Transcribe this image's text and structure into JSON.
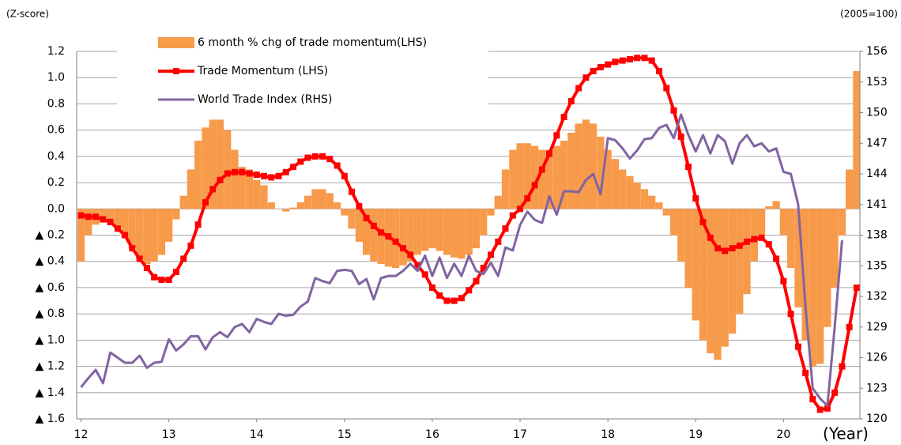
{
  "chart_data": {
    "type": "combo",
    "y_label": "(Z-score)",
    "y2_label": "(2005=100)",
    "x_label": "(Year)",
    "legend": "upper left",
    "grid": true,
    "xlim": [
      11.95,
      20.87
    ],
    "ylim": [
      -1.6,
      1.2
    ],
    "y2lim": [
      120,
      156
    ],
    "xticks": [
      12,
      13,
      14,
      15,
      16,
      17,
      18,
      19,
      20
    ],
    "yticks": [
      {
        "value": -1.6,
        "label": "▲ 1.6"
      },
      {
        "value": -1.4,
        "label": "▲ 1.4"
      },
      {
        "value": -1.2,
        "label": "▲ 1.2"
      },
      {
        "value": -1.0,
        "label": "▲ 1.0"
      },
      {
        "value": -0.8,
        "label": "▲ 0.8"
      },
      {
        "value": -0.6,
        "label": "▲ 0.6"
      },
      {
        "value": -0.4,
        "label": "▲ 0.4"
      },
      {
        "value": -0.2,
        "label": "▲ 0.2"
      },
      {
        "value": 0,
        "label": "0.0"
      },
      0.2,
      0.4,
      0.6,
      0.8,
      {
        "value": 1.0,
        "label": "1.0"
      },
      1.2
    ],
    "y2ticks": [
      120,
      123,
      126,
      129,
      132,
      135,
      138,
      141,
      144,
      147,
      150,
      153,
      156
    ],
    "x": [
      12,
      12.083,
      12.167,
      12.25,
      12.333,
      12.417,
      12.5,
      12.583,
      12.667,
      12.75,
      12.833,
      12.917,
      13,
      13.083,
      13.167,
      13.25,
      13.333,
      13.417,
      13.5,
      13.583,
      13.667,
      13.75,
      13.833,
      13.917,
      14,
      14.083,
      14.167,
      14.25,
      14.333,
      14.417,
      14.5,
      14.583,
      14.667,
      14.75,
      14.833,
      14.917,
      15,
      15.083,
      15.167,
      15.25,
      15.333,
      15.417,
      15.5,
      15.583,
      15.667,
      15.75,
      15.833,
      15.917,
      16,
      16.083,
      16.167,
      16.25,
      16.333,
      16.417,
      16.5,
      16.583,
      16.667,
      16.75,
      16.833,
      16.917,
      17,
      17.083,
      17.167,
      17.25,
      17.333,
      17.417,
      17.5,
      17.583,
      17.667,
      17.75,
      17.833,
      17.917,
      18,
      18.083,
      18.167,
      18.25,
      18.333,
      18.417,
      18.5,
      18.583,
      18.667,
      18.75,
      18.833,
      18.917,
      19,
      19.083,
      19.167,
      19.25,
      19.333,
      19.417,
      19.5,
      19.583,
      19.667,
      19.75,
      19.833,
      19.917,
      20,
      20.083,
      20.167,
      20.25,
      20.333,
      20.417,
      20.5,
      20.583,
      20.667,
      20.75,
      20.833
    ],
    "series": [
      {
        "name": "6 month % chg of trade momentum(LHS)",
        "kind": "bar",
        "color": "#f79a4a",
        "values": [
          -0.4,
          -0.2,
          -0.12,
          -0.08,
          -0.1,
          -0.15,
          -0.22,
          -0.3,
          -0.38,
          -0.42,
          -0.4,
          -0.35,
          -0.25,
          -0.08,
          0.1,
          0.3,
          0.52,
          0.62,
          0.68,
          0.68,
          0.6,
          0.45,
          0.32,
          0.3,
          0.22,
          0.18,
          0.05,
          0.0,
          -0.02,
          0.01,
          0.05,
          0.1,
          0.15,
          0.15,
          0.12,
          0.05,
          -0.05,
          -0.15,
          -0.25,
          -0.35,
          -0.4,
          -0.42,
          -0.44,
          -0.45,
          -0.43,
          -0.4,
          -0.35,
          -0.32,
          -0.3,
          -0.32,
          -0.35,
          -0.37,
          -0.38,
          -0.35,
          -0.3,
          -0.2,
          -0.05,
          0.1,
          0.3,
          0.45,
          0.5,
          0.5,
          0.48,
          0.45,
          0.45,
          0.48,
          0.52,
          0.58,
          0.65,
          0.68,
          0.65,
          0.55,
          0.45,
          0.38,
          0.3,
          0.25,
          0.2,
          0.15,
          0.1,
          0.05,
          -0.05,
          -0.2,
          -0.4,
          -0.6,
          -0.85,
          -1.0,
          -1.1,
          -1.15,
          -1.05,
          -0.95,
          -0.8,
          -0.65,
          -0.4,
          -0.2,
          0.02,
          0.06,
          -0.2,
          -0.45,
          -0.75,
          -1.0,
          -1.2,
          -1.18,
          -0.9,
          -0.6,
          -0.2,
          0.3,
          1.05
        ]
      },
      {
        "name": "Trade Momentum (LHS)",
        "kind": "line-marker",
        "color": "#ff0000",
        "values": [
          -0.05,
          -0.06,
          -0.06,
          -0.08,
          -0.1,
          -0.15,
          -0.2,
          -0.3,
          -0.38,
          -0.45,
          -0.52,
          -0.54,
          -0.54,
          -0.48,
          -0.38,
          -0.28,
          -0.12,
          0.05,
          0.15,
          0.22,
          0.27,
          0.28,
          0.28,
          0.27,
          0.26,
          0.25,
          0.24,
          0.25,
          0.28,
          0.32,
          0.36,
          0.39,
          0.4,
          0.4,
          0.38,
          0.33,
          0.25,
          0.13,
          0.02,
          -0.07,
          -0.13,
          -0.18,
          -0.21,
          -0.25,
          -0.3,
          -0.35,
          -0.43,
          -0.5,
          -0.6,
          -0.66,
          -0.7,
          -0.7,
          -0.68,
          -0.62,
          -0.55,
          -0.45,
          -0.35,
          -0.25,
          -0.15,
          -0.05,
          0.0,
          0.08,
          0.18,
          0.3,
          0.42,
          0.56,
          0.7,
          0.82,
          0.92,
          1.0,
          1.05,
          1.08,
          1.1,
          1.12,
          1.13,
          1.14,
          1.15,
          1.15,
          1.13,
          1.05,
          0.92,
          0.75,
          0.55,
          0.32,
          0.08,
          -0.1,
          -0.22,
          -0.3,
          -0.32,
          -0.3,
          -0.28,
          -0.25,
          -0.23,
          -0.22,
          -0.27,
          -0.38,
          -0.55,
          -0.8,
          -1.05,
          -1.25,
          -1.45,
          -1.53,
          -1.52,
          -1.4,
          -1.2,
          -0.9,
          -0.6
        ]
      },
      {
        "name": "World Trade Index (RHS)",
        "kind": "line",
        "axis": "y2",
        "color": "#8064a2",
        "values": [
          123.1,
          124,
          124.8,
          123.5,
          126.5,
          126,
          125.5,
          125.5,
          126.2,
          125,
          125.5,
          125.6,
          127.8,
          126.7,
          127.3,
          128.1,
          128.1,
          126.8,
          128,
          128.5,
          128,
          129,
          129.3,
          128.5,
          129.8,
          129.5,
          129.3,
          130.3,
          130.1,
          130.2,
          131,
          131.5,
          133.8,
          133.5,
          133.3,
          134.5,
          134.6,
          134.5,
          133.2,
          133.7,
          131.7,
          133.8,
          134,
          134,
          134.5,
          135.2,
          134.5,
          136,
          134,
          135.8,
          133.8,
          135.2,
          134,
          136,
          134.5,
          134.2,
          135.3,
          134,
          136.8,
          136.5,
          139,
          140.3,
          139.5,
          139.2,
          141.8,
          140,
          142.3,
          142.3,
          142.2,
          143.4,
          144,
          142,
          147.5,
          147.3,
          146.5,
          145.5,
          146.3,
          147.4,
          147.5,
          148.5,
          148.8,
          147.5,
          149.8,
          147.8,
          146.2,
          147.8,
          146,
          147.8,
          147.2,
          145,
          147,
          147.8,
          146.7,
          147,
          146.2,
          146.5,
          144.2,
          144,
          141,
          131,
          123,
          122,
          121.3,
          129,
          137.5,
          null,
          null
        ]
      }
    ]
  }
}
